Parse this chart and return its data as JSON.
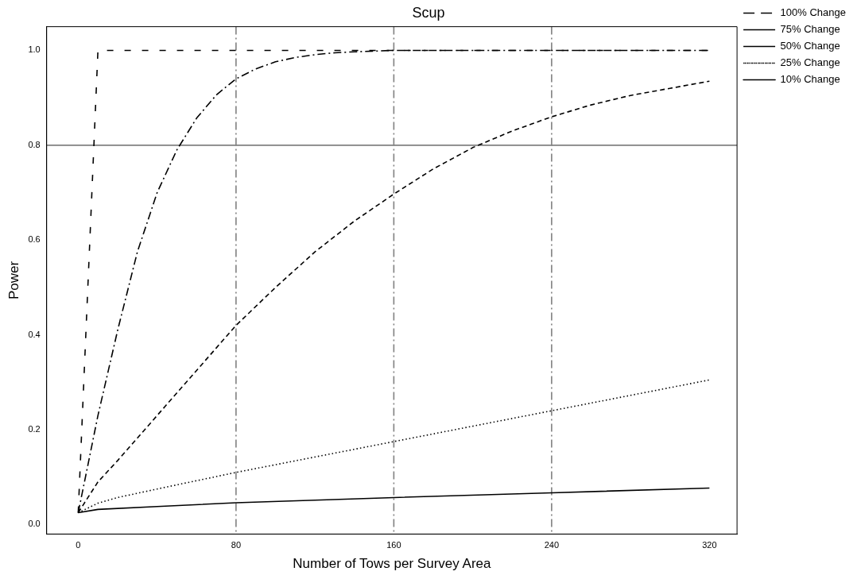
{
  "chart_data": {
    "type": "line",
    "title": "Scup",
    "xlabel": "Number of Tows per Survey Area",
    "ylabel": "Power",
    "xlim": [
      -16,
      334
    ],
    "ylim": [
      -0.02,
      1.05
    ],
    "xticks": [
      0,
      80,
      160,
      240,
      320
    ],
    "yticks": [
      {
        "value": 0,
        "label": "0.0"
      },
      {
        "value": 0.2,
        "label": "0.2"
      },
      {
        "value": 0.4,
        "label": "0.4"
      },
      {
        "value": 0.6,
        "label": "0.6"
      },
      {
        "value": 0.8,
        "label": "0.8"
      },
      {
        "value": 1,
        "label": "1.0"
      }
    ],
    "grid": false,
    "legend": "top right",
    "marker": "none",
    "series": [
      {
        "name": "100% Change",
        "color": "#000000",
        "line_style": "loose_dashed",
        "x": [
          0,
          10,
          320
        ],
        "values": [
          0.025,
          1.0,
          1.0
        ]
      },
      {
        "name": "75% Change",
        "color": "#000000",
        "line_style": "dashdot",
        "x": [
          0,
          10,
          20,
          30,
          40,
          50,
          60,
          70,
          80,
          90,
          100,
          110,
          120,
          130,
          140,
          160,
          200,
          320
        ],
        "values": [
          0.025,
          0.23,
          0.41,
          0.575,
          0.7,
          0.79,
          0.857,
          0.906,
          0.94,
          0.961,
          0.976,
          0.985,
          0.991,
          0.995,
          0.997,
          1.0,
          1.0,
          1.0
        ]
      },
      {
        "name": "50% Change",
        "color": "#000000",
        "line_style": "dashed",
        "x": [
          0,
          10,
          20,
          40,
          60,
          80,
          100,
          120,
          140,
          160,
          180,
          200,
          220,
          240,
          260,
          280,
          300,
          320
        ],
        "values": [
          0.025,
          0.09,
          0.135,
          0.23,
          0.325,
          0.42,
          0.5,
          0.575,
          0.64,
          0.697,
          0.75,
          0.795,
          0.83,
          0.86,
          0.885,
          0.905,
          0.92,
          0.935
        ]
      },
      {
        "name": "25% Change",
        "color": "#000000",
        "line_style": "dotted",
        "x": [
          0,
          10,
          20,
          40,
          80,
          160,
          240,
          320
        ],
        "values": [
          0.025,
          0.045,
          0.057,
          0.075,
          0.11,
          0.175,
          0.24,
          0.305
        ]
      },
      {
        "name": "10% Change",
        "color": "#000000",
        "line_style": "solid",
        "x": [
          0,
          10,
          40,
          80,
          160,
          240,
          320
        ],
        "values": [
          0.025,
          0.032,
          0.038,
          0.046,
          0.057,
          0.067,
          0.077
        ]
      }
    ],
    "ref_lines": [
      {
        "axis": "y",
        "value": 0.8,
        "color": "#808080",
        "line_style": "solid"
      },
      {
        "axis": "x",
        "value": 80,
        "color": "#808080",
        "line_style": "dashdot"
      },
      {
        "axis": "x",
        "value": 160,
        "color": "#808080",
        "line_style": "dashdot"
      },
      {
        "axis": "x",
        "value": 240,
        "color": "#808080",
        "line_style": "dashdot"
      }
    ]
  }
}
